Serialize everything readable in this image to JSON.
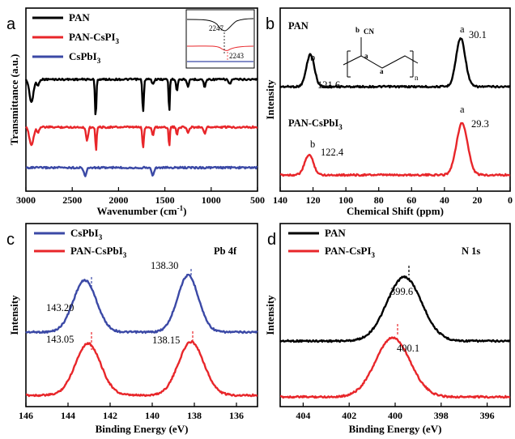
{
  "chart_data": [
    {
      "panel": "a",
      "type": "line",
      "xlabel": "Wavenumber (cm",
      "xlabel_sup": "-1",
      "xlabel_tail": ")",
      "ylabel": "Transmittance (a.u.)",
      "xlim": [
        3000,
        500
      ],
      "xticks": [
        "3000",
        "2500",
        "2000",
        "1500",
        "1000",
        "500"
      ],
      "legend_position": "top-left",
      "series": [
        {
          "name": "PAN",
          "color": "#000000",
          "baseline": 98,
          "dips": [
            [
              2940,
              28,
              22
            ],
            [
              2870,
              8,
              12
            ],
            [
              2247,
              48,
              7
            ],
            [
              1735,
              40,
              8
            ],
            [
              1630,
              6,
              10
            ],
            [
              1453,
              42,
              6
            ],
            [
              1370,
              14,
              8
            ],
            [
              1250,
              10,
              10
            ],
            [
              1070,
              10,
              10
            ],
            [
              800,
              6,
              12
            ]
          ]
        },
        {
          "name": "PAN-CsPI3",
          "name_sub": "3",
          "color": "#e8262a",
          "baseline": 157,
          "dips": [
            [
              2940,
              22,
              22
            ],
            [
              2870,
              6,
              12
            ],
            [
              2340,
              16,
              12
            ],
            [
              2243,
              28,
              7
            ],
            [
              1735,
              26,
              8
            ],
            [
              1630,
              10,
              10
            ],
            [
              1453,
              26,
              6
            ],
            [
              1370,
              10,
              8
            ],
            [
              1250,
              8,
              10
            ],
            [
              1070,
              8,
              10
            ]
          ]
        },
        {
          "name": "CsPbI3",
          "name_sub": "3",
          "color": "#3b49a6",
          "baseline": 207,
          "dips": [
            [
              2360,
              10,
              14
            ],
            [
              1630,
              9,
              14
            ]
          ]
        }
      ],
      "inset": {
        "labels": [
          "2247",
          "2243"
        ]
      }
    },
    {
      "panel": "b",
      "type": "line",
      "xlabel": "Chemical Shift (ppm)",
      "ylabel": "Intensity",
      "xlim": [
        140,
        0
      ],
      "xticks": [
        "140",
        "120",
        "100",
        "80",
        "60",
        "40",
        "20",
        "0"
      ],
      "series": [
        {
          "name": "PAN",
          "color": "#000000",
          "baseline": 107,
          "peaks": [
            [
              121.6,
              40,
              2.4
            ],
            [
              30.1,
              60,
              2.8
            ]
          ]
        },
        {
          "name": "PAN-CsPbI3",
          "name_sub": "3",
          "color": "#e8262a",
          "baseline": 216,
          "peaks": [
            [
              122.4,
              25,
              2.6
            ],
            [
              29.3,
              64,
              3.4
            ]
          ]
        }
      ],
      "peak_labels": [
        {
          "letter": "b",
          "value": "121.6"
        },
        {
          "letter": "a",
          "value": "30.1"
        },
        {
          "letter": "b",
          "value": "122.4"
        },
        {
          "letter": "a",
          "value": "29.3"
        }
      ],
      "structure_labels": {
        "b": "b",
        "cn": "CN",
        "a1": "a",
        "a2": "a",
        "n": "n"
      }
    },
    {
      "panel": "c",
      "type": "line",
      "title": "Pb 4f",
      "xlabel": "Binding Energy (eV)",
      "ylabel": "Intensity",
      "xlim": [
        146,
        135
      ],
      "xticks": [
        "146",
        "144",
        "142",
        "140",
        "138",
        "136"
      ],
      "series": [
        {
          "name": "CsPbI3",
          "name_sub": "3",
          "color": "#3b49a6",
          "baseline": 410,
          "peaks": [
            [
              143.2,
              64,
              0.55
            ],
            [
              138.3,
              70,
              0.5
            ]
          ]
        },
        {
          "name": "PAN-CsPbI3",
          "name_sub": "3",
          "color": "#e8262a",
          "baseline": 488,
          "peaks": [
            [
              143.05,
              64,
              0.6
            ],
            [
              138.15,
              66,
              0.6
            ]
          ]
        }
      ],
      "peak_labels": [
        "143.20",
        "138.30",
        "143.05",
        "138.15"
      ]
    },
    {
      "panel": "d",
      "type": "line",
      "title": "N 1s",
      "xlabel": "Binding Energy (eV)",
      "ylabel": "Intensity",
      "xlim": [
        405,
        395
      ],
      "xticks": [
        "404",
        "402",
        "400",
        "398",
        "396"
      ],
      "series": [
        {
          "name": "PAN",
          "color": "#000000",
          "baseline": 421,
          "peaks": [
            [
              399.6,
              79,
              0.75
            ]
          ]
        },
        {
          "name": "PAN-CsPI3",
          "name_sub": "3",
          "color": "#e8262a",
          "baseline": 490,
          "peaks": [
            [
              400.1,
              73,
              0.75
            ]
          ]
        }
      ],
      "peak_labels": [
        "399.6",
        "400.1"
      ]
    }
  ]
}
